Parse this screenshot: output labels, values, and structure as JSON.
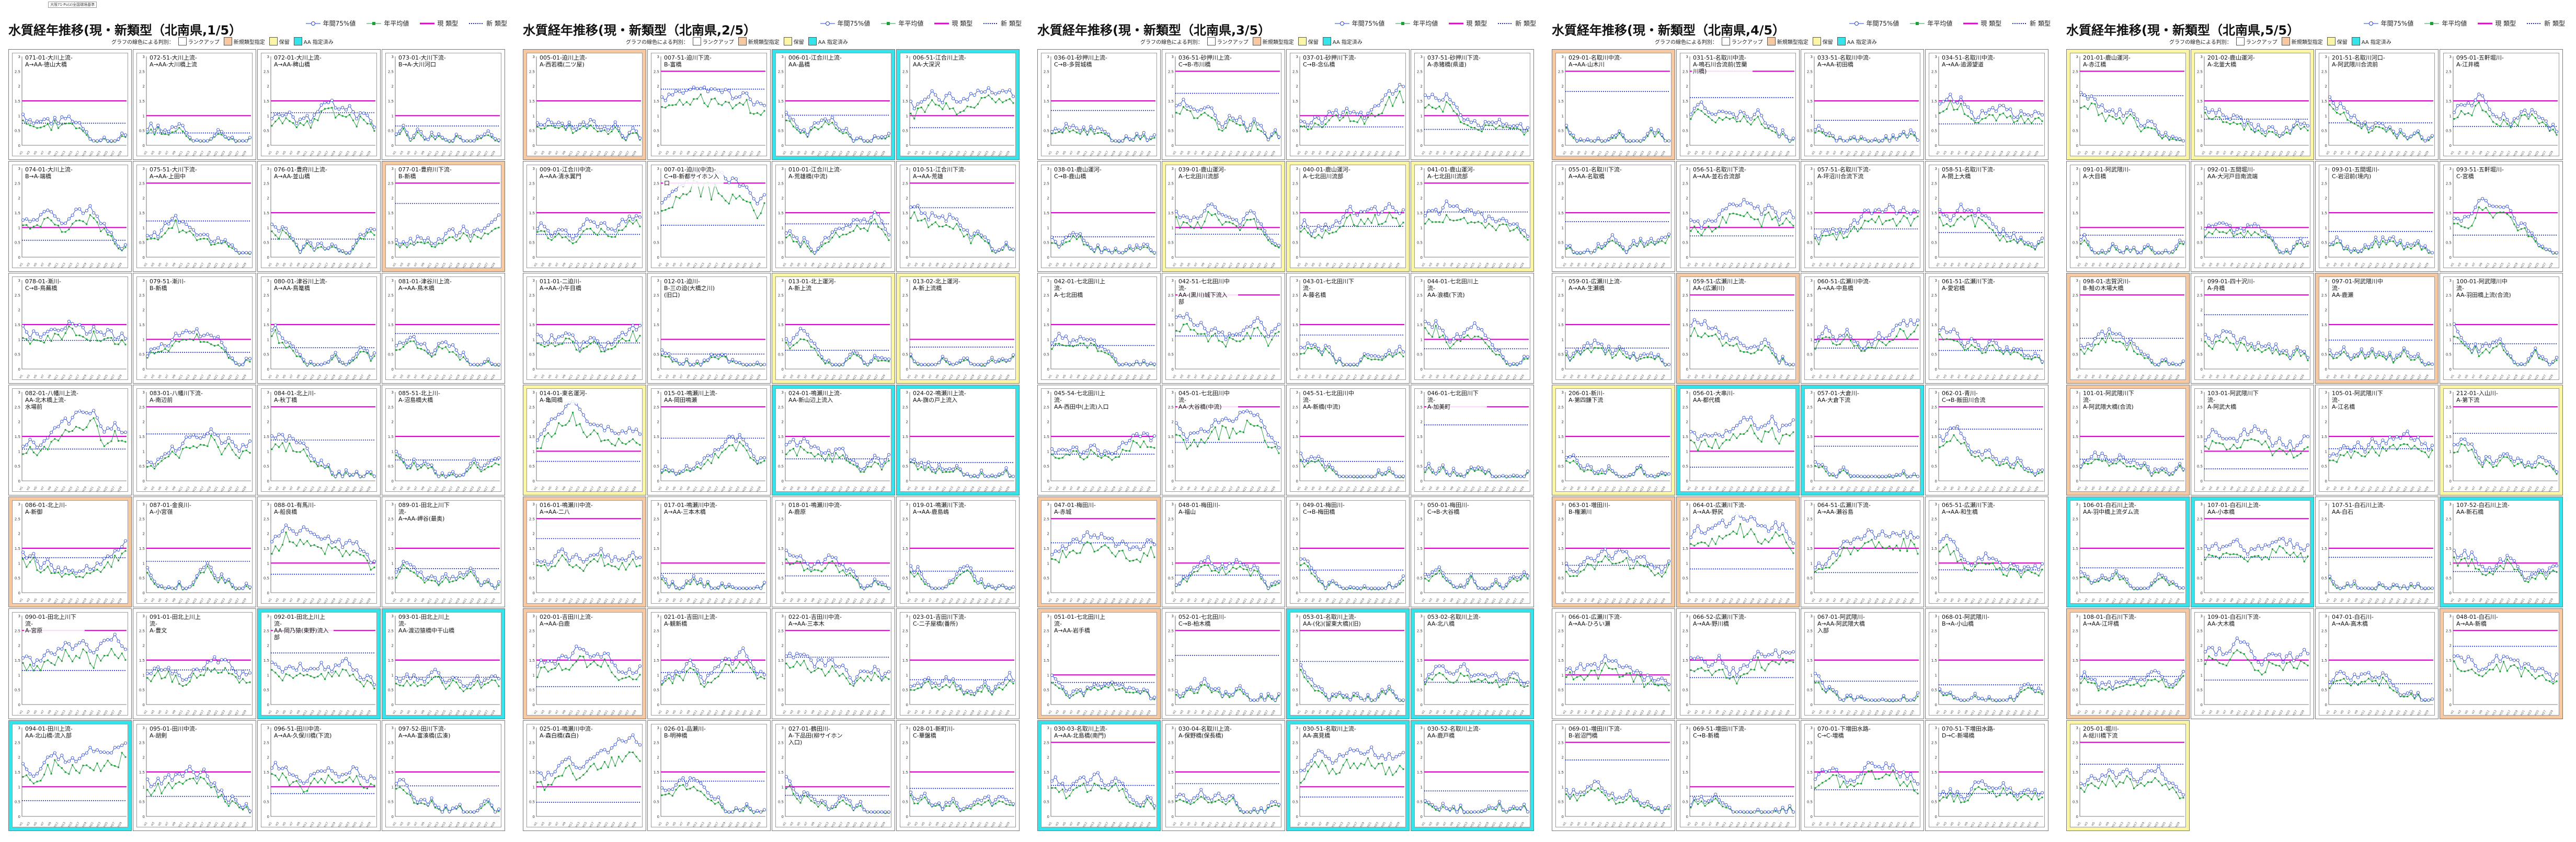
{
  "page_note": "大阪71-Pu(z)全国環境基準",
  "legend": {
    "p75": "年間75%値",
    "avg": "年平均値",
    "old": "現 類型",
    "new": "新 類型"
  },
  "colors": {
    "p75": "#1f3fd6",
    "avg": "#1f9e3a",
    "old": "#e000d0",
    "new": "#1830c8",
    "orange": "#f6c9a3",
    "cyan": "#37e3ea",
    "yellow": "#fbf6a6"
  },
  "filter": {
    "label": "グラフの線色による判別：",
    "rank_up": "ランクアップ",
    "new_type": "新規類型指定",
    "hold": "保留",
    "aa": "AA 指定済み"
  },
  "sheets": [
    {
      "title": "水質経年推移(現・新類型（北南県,1/5）",
      "panels": [
        {
          "label": "071-01-大川上流-\nA→AA-徳山大橋",
          "hl": "none"
        },
        {
          "label": "072-51-大川上流-\nA→AA-大川橋上流",
          "hl": "none"
        },
        {
          "label": "072-01-大川上流-\nA→AA-稗山橋",
          "hl": "none"
        },
        {
          "label": "073-01-大川下流-\nB→A-大川河口",
          "hl": "none"
        },
        {
          "label": "074-01-大川上流-\nB→A-端橋",
          "hl": "none"
        },
        {
          "label": "075-51-大川下流-\nA→AA-上田中",
          "hl": "none"
        },
        {
          "label": "076-01-豊府川上流-\nA→AA-並山橋",
          "hl": "none"
        },
        {
          "label": "077-01-豊府川下流-\nB-新橋",
          "hl": "orange"
        },
        {
          "label": "078-01-漸川-\nC→B-鳥蕪橋",
          "hl": "none"
        },
        {
          "label": "079-51-漸川-\nB-新橋",
          "hl": "none"
        },
        {
          "label": "080-01-津谷川上流-\nA→AA-鳥篭橋",
          "hl": "none"
        },
        {
          "label": "081-01-津谷川上流-\nA→AA-鳥木橋",
          "hl": "none"
        },
        {
          "label": "082-01-八幡川上流-\nAA-北木橋上流-\n水場前",
          "hl": "none"
        },
        {
          "label": "083-01-八幡川下流-\nA-南辺前",
          "hl": "none"
        },
        {
          "label": "084-01-北上川-\nA-秋丁橋",
          "hl": "none"
        },
        {
          "label": "085-51-北上川-\nA-沼島橋大橋",
          "hl": "none"
        },
        {
          "label": "086-01-北上川-\nA-新御",
          "hl": "orange"
        },
        {
          "label": "087-01-金良川-\nA-小宮嶺",
          "hl": "none"
        },
        {
          "label": "088-01-有馬川-\nA-船良橋",
          "hl": "none"
        },
        {
          "label": "089-01-田北上川下流-\nA→AA-岬谷(最奥)",
          "hl": "none"
        },
        {
          "label": "090-01-田北上川下流-\nA-宮原",
          "hl": "none"
        },
        {
          "label": "091-01-田北上川上流-\nA-豊文",
          "hl": "none"
        },
        {
          "label": "092-01-田北上川上流-\nAA-岡乃猿(東野)流入\n部",
          "hl": "cyan"
        },
        {
          "label": "093-01-田北上川上流-\nAA-渡辺猿橋中干山橋",
          "hl": "cyan"
        },
        {
          "label": "094-01-田川上流-\nAA-北山橋-流入部",
          "hl": "cyan"
        },
        {
          "label": "095-01-田川中流-\nA-胡剣",
          "hl": "none"
        },
        {
          "label": "096-51-田川中流-\nA→AA-久保川橋(下流)",
          "hl": "none"
        },
        {
          "label": "097-52-田川下流-\nA→AA-富湊橋(広湊)",
          "hl": "none"
        }
      ]
    },
    {
      "title": "水質経年推移(現・新類型（北南県,2/5）",
      "panels": [
        {
          "label": "005-01-迫川上流-\nA-西若橋(二ツ屋)",
          "hl": "orange"
        },
        {
          "label": "007-51-迫川下流-\nB-富橋",
          "hl": "none"
        },
        {
          "label": "006-01-江合川上流-\nAA-晶橋",
          "hl": "cyan"
        },
        {
          "label": "006-51-江合川上流-\nAA-大深沢",
          "hl": "cyan"
        },
        {
          "label": "009-01-江合川中流-\nA→AA-清水翼門",
          "hl": "none"
        },
        {
          "label": "007-01-迫川(中流)-\nC→B-新都サイホン入口",
          "hl": "none"
        },
        {
          "label": "010-01-江合川上流-\nA-荒雄橋(中流)",
          "hl": "none"
        },
        {
          "label": "010-51-江合川下流-\nA→AA-荒雄",
          "hl": "none"
        },
        {
          "label": "011-01-二迫川-\nA→AA-小午目橋",
          "hl": "none"
        },
        {
          "label": "012-01-迫川-\nB-三の迫(大橋之川)(旧口)",
          "hl": "none"
        },
        {
          "label": "013-01-北上運河-\nA-新上流",
          "hl": "yellow"
        },
        {
          "label": "013-02-北上運河-\nA-新上流橋",
          "hl": "yellow"
        },
        {
          "label": "014-01-東名運河-\nA-亀岡橋",
          "hl": "yellow"
        },
        {
          "label": "015-01-鳴瀬川上流-\nAA-岡田鳴瀬",
          "hl": "none"
        },
        {
          "label": "024-01-鳴瀬川上流-\nAA-新山辺上流入",
          "hl": "cyan"
        },
        {
          "label": "024-02-鳴瀬川上流-\nAA-旗の戸上流入",
          "hl": "cyan"
        },
        {
          "label": "016-01-鳴瀬川中流-\nA→AA-二八",
          "hl": "orange"
        },
        {
          "label": "017-01-鳴瀬川中流-\nA→AA-三本木橋",
          "hl": "none"
        },
        {
          "label": "018-01-鳴瀬川中流-\nA-鹿原",
          "hl": "none"
        },
        {
          "label": "019-01-鳴瀬川下流-\nA→AA-鹿島嶋",
          "hl": "none"
        },
        {
          "label": "020-01-吉田川上流-\nA→AA-白鹿",
          "hl": "orange"
        },
        {
          "label": "021-01-吉田川上流-\nA-観新橋",
          "hl": "none"
        },
        {
          "label": "022-01-吉田川中流-\nA→AA-三本木",
          "hl": "none"
        },
        {
          "label": "023-01-吉田川下流-\nC-二子屋橋(番所)",
          "hl": "none"
        },
        {
          "label": "025-01-鳴瀬川中流-\nA-森白橋(森白)",
          "hl": "none"
        },
        {
          "label": "026-01-品瀬川-\nB-明神橋",
          "hl": "none"
        },
        {
          "label": "027-01-鶴田川-\nA-下品田(柳サイホン入口)",
          "hl": "none"
        },
        {
          "label": "028-01-新町川-\nC-華盤橋",
          "hl": "none"
        }
      ]
    },
    {
      "title": "水質経年推移(現・新類型（北南県,3/5）",
      "panels": [
        {
          "label": "036-01-砂押川上流-\nC→B-多賀城橋",
          "hl": "none"
        },
        {
          "label": "036-51-砂押川上流-\nC→B-市川橋",
          "hl": "none"
        },
        {
          "label": "037-01-砂押川下流-\nC→B-念仏橋",
          "hl": "none"
        },
        {
          "label": "037-51-砂押川下流-\nA-赤猪橋(県道)",
          "hl": "none"
        },
        {
          "label": "038-01-鹿山運河-\nC→B-鹿山橋",
          "hl": "none"
        },
        {
          "label": "039-01-鹿山運河-\nA-七北田川流部",
          "hl": "yellow"
        },
        {
          "label": "040-01-鹿山運河-\nA-七北田川流部",
          "hl": "yellow"
        },
        {
          "label": "041-01-鹿山運河-\nA-七北田川流部",
          "hl": "yellow"
        },
        {
          "label": "042-01-七北田川上流-\nA-七北田橋",
          "hl": "none"
        },
        {
          "label": "042-51-七北田川中流-\nAA-(黒川)城下流入\n部",
          "hl": "none"
        },
        {
          "label": "043-01-七北田川下流-\nA-藤名橋",
          "hl": "none"
        },
        {
          "label": "044-01-七北田川上流-\nAA-浪橋(下流)",
          "hl": "none"
        },
        {
          "label": "045-54-七北田川上流-\nAA-西田中(上流)入口",
          "hl": "none"
        },
        {
          "label": "045-01-七北田川中流-\nAA-大谷橋(中流)",
          "hl": "none"
        },
        {
          "label": "045-51-七北田川中流-\nAA-新橋(中流)",
          "hl": "none"
        },
        {
          "label": "046-01-七北田川下流-\nA-加美町",
          "hl": "none"
        },
        {
          "label": "047-01-梅田川-\nA-赤城",
          "hl": "orange"
        },
        {
          "label": "048-01-梅田川-\nA-福山",
          "hl": "none"
        },
        {
          "label": "049-01-梅田川-\nC→B-梅田橋",
          "hl": "none"
        },
        {
          "label": "050-01-梅田川-\nC→B-大谷橋",
          "hl": "none"
        },
        {
          "label": "051-01-七北田川上流-\nA→AA-岩手橋",
          "hl": "orange"
        },
        {
          "label": "052-01-七北田川-\nC→B-柏木橋",
          "hl": "none"
        },
        {
          "label": "053-01-名取川上流-\nAA-(化)(留東大橋)(旧)",
          "hl": "cyan"
        },
        {
          "label": "053-02-名取川上流-\nAA-北八橋",
          "hl": "cyan"
        },
        {
          "label": "030-03-名取川上流-\nA→AA-北島橋(南門)",
          "hl": "cyan"
        },
        {
          "label": "030-04-名取川上流-\nA-保野橋(保長橋)",
          "hl": "none"
        },
        {
          "label": "030-51-名取川上流-\nAA-高見橋",
          "hl": "cyan"
        },
        {
          "label": "030-52-名取川上流-\nAA-鹿戸橋",
          "hl": "cyan"
        }
      ]
    },
    {
      "title": "水質経年推移(現・新類型（北南県,4/5）",
      "panels": [
        {
          "label": "029-01-名取川中流-\nA→AA-山木川",
          "hl": "orange"
        },
        {
          "label": "031-51-名取川中流-\nA-鳴石川合流前(笠蘭川橋)",
          "hl": "none"
        },
        {
          "label": "033-51-名取川中流-\nA→AA-初田橋",
          "hl": "none"
        },
        {
          "label": "034-51-名取川中流-\nA→AA-追源望道",
          "hl": "none"
        },
        {
          "label": "055-01-名取川下流-\nA→AA-名取橋",
          "hl": "none"
        },
        {
          "label": "056-51-名取川下流-\nA→AA-並石合流部",
          "hl": "none"
        },
        {
          "label": "057-51-名取川下流-\nA-坪沼川合流下流",
          "hl": "none"
        },
        {
          "label": "058-51-名取川下流-\nA-閖上大橋",
          "hl": "none"
        },
        {
          "label": "059-01-広瀬川上流-\nA→AA-生瀬橋",
          "hl": "none"
        },
        {
          "label": "059-51-広瀬川上流-\nAA-(広瀬川)",
          "hl": "orange"
        },
        {
          "label": "060-51-広瀬川中流-\nA→AA-中島橋",
          "hl": "none"
        },
        {
          "label": "061-51-広瀬川下流-\nA-愛宕橋",
          "hl": "none"
        },
        {
          "label": "206-01-新川-\nA-第四鎌下流",
          "hl": "yellow"
        },
        {
          "label": "056-01-大串川-\nAA-都代橋",
          "hl": "cyan"
        },
        {
          "label": "057-01-大倉川-\nAA-大倉下流",
          "hl": "cyan"
        },
        {
          "label": "062-01-青川-\nC→B-飯田川合流",
          "hl": "none"
        },
        {
          "label": "063-01-増田川-\nB-権瀬川",
          "hl": "orange"
        },
        {
          "label": "064-01-広瀬川下流-\nA→AA-野尻",
          "hl": "orange"
        },
        {
          "label": "064-51-広瀬川下流-\nA→AA-瀬谷島",
          "hl": "none"
        },
        {
          "label": "065-51-広瀬川下流-\nA→AA-和生橋",
          "hl": "none"
        },
        {
          "label": "066-01-広瀬川下流-\nA→AA-ひろい瀬",
          "hl": "none"
        },
        {
          "label": "066-52-広瀬川下流-\nA→AA-野川橋",
          "hl": "none"
        },
        {
          "label": "067-01-阿武隈川-\nA→AA-阿武隈大橋\n入部",
          "hl": "none"
        },
        {
          "label": "068-01-阿武隈川-\nB→A-小山橋",
          "hl": "none"
        },
        {
          "label": "069-01-増田川下流-\nB-岩沼門橋",
          "hl": "none"
        },
        {
          "label": "069-51-増田川下流-\nC→B-新橋",
          "hl": "none"
        },
        {
          "label": "070-01-下増田水路-\nC→C-増橋",
          "hl": "none"
        },
        {
          "label": "070-51-下増田水路-\nD→C-新場橋",
          "hl": "none"
        }
      ]
    },
    {
      "title": "水質経年推移(現・新類型（北南県,5/5）",
      "panels": [
        {
          "label": "201-01-鹿山運河-\nA-赤江橋",
          "hl": "yellow"
        },
        {
          "label": "201-02-鹿山運河-\nA-北釜大橋",
          "hl": "yellow"
        },
        {
          "label": "201-51-名取川河口-\nA-阿武隈川合流前",
          "hl": "none"
        },
        {
          "label": "095-01-五軒堀川-\nA-江井橋",
          "hl": "none"
        },
        {
          "label": "091-01-阿武隈川-\nA-大目橋",
          "hl": "none"
        },
        {
          "label": "092-01-五間堀川-\nAA-大河戸目南流端",
          "hl": "none"
        },
        {
          "label": "093-01-五間堀川-\nC-岩沼前(境内)",
          "hl": "none"
        },
        {
          "label": "093-51-五軒堀川-\nC-宮橋",
          "hl": "none"
        },
        {
          "label": "098-01-志賀沢川-\nB-鮭の木場大橋",
          "hl": "orange"
        },
        {
          "label": "099-01-四十沢川-\nA-舟橋",
          "hl": "none"
        },
        {
          "label": "097-01-阿武隈川中流-\nAA-鹿瀬",
          "hl": "orange"
        },
        {
          "label": "100-01-阿武隈川中流-\nAA-羽田橋上流(合流)",
          "hl": "none"
        },
        {
          "label": "101-01-阿武隈川下流-\nA-阿武隈大橋(合流)",
          "hl": "orange"
        },
        {
          "label": "103-01-阿武隈川下流-\nA-阿武大橋",
          "hl": "none"
        },
        {
          "label": "105-01-阿武隈川下流-\nA-江名橋",
          "hl": "none"
        },
        {
          "label": "212-01-入山川-\nA-第下流",
          "hl": "yellow"
        },
        {
          "label": "106-01-白石川上流-\nAA-羽中橋上流ダム流",
          "hl": "cyan"
        },
        {
          "label": "107-01-白石川上流-\nAA-小本橋",
          "hl": "cyan"
        },
        {
          "label": "107-51-白石川上流-\nAA-白石",
          "hl": "none"
        },
        {
          "label": "107-52-白石川上流-\nAA-新石橋",
          "hl": "cyan"
        },
        {
          "label": "108-01-白石川下流-\nA→AA-江坪橋",
          "hl": "orange"
        },
        {
          "label": "109-01-白石川下流-\nAA-大木橋",
          "hl": "none"
        },
        {
          "label": "047-01-白石川-\nA→AA-高木橋",
          "hl": "none"
        },
        {
          "label": "048-01-白石川-\nA→AA-新橋",
          "hl": "orange"
        },
        {
          "label": "205-01-堀川-\nA-総川橋下流",
          "hl": "yellow"
        }
      ]
    }
  ],
  "axis": {
    "y_ticks": [
      "0",
      "0.5",
      "1",
      "1.5",
      "2",
      "2.5",
      "3"
    ],
    "y_max": 3,
    "n_years": 30
  }
}
